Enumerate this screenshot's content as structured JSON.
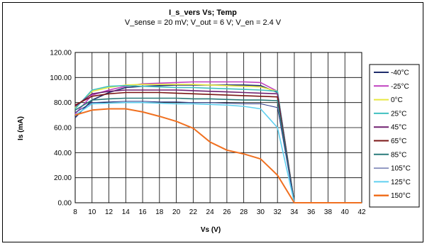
{
  "chart_data": {
    "type": "line",
    "title": "I_s_vers Vs; Temp",
    "subtitle": "V_sense = 20 mV; V_out = 6 V; V_en = 2.4 V",
    "xlabel": "Vs (V)",
    "ylabel": "Is (mA)",
    "xlim": [
      8,
      42
    ],
    "ylim": [
      0,
      120
    ],
    "xticks": [
      "8",
      "10",
      "12",
      "14",
      "16",
      "18",
      "20",
      "22",
      "24",
      "26",
      "28",
      "30",
      "32",
      "34",
      "36",
      "38",
      "40",
      "42"
    ],
    "yticks": [
      "0.00",
      "20.00",
      "40.00",
      "60.00",
      "80.00",
      "100.00",
      "120.00"
    ],
    "grid": true,
    "legend_position": "right",
    "x": [
      8,
      10,
      12,
      14,
      16,
      18,
      20,
      22,
      24,
      26,
      28,
      30,
      32,
      34,
      36,
      38,
      40,
      42
    ],
    "series": [
      {
        "name": "-40°C",
        "color": "#1f2d6b",
        "values": [
          68,
          82,
          88,
          92,
          93,
          93.5,
          94,
          94,
          94,
          94,
          94,
          93.5,
          88,
          0,
          0,
          0,
          0,
          0
        ]
      },
      {
        "name": "-25°C",
        "color": "#c040c0",
        "values": [
          71,
          86,
          90,
          93,
          95,
          95.5,
          96,
          96.5,
          96.5,
          96.5,
          96.5,
          96,
          89,
          0,
          0,
          0,
          0,
          0
        ]
      },
      {
        "name": "0°C",
        "color": "#e8e840",
        "values": [
          76,
          89,
          92,
          94,
          94.5,
          94.5,
          94.5,
          94.5,
          94,
          93.5,
          93,
          92.5,
          89,
          0,
          0,
          0,
          0,
          0
        ]
      },
      {
        "name": "25°C",
        "color": "#40c0c0",
        "values": [
          75,
          90,
          93,
          93.5,
          93,
          92.5,
          92,
          92,
          91.5,
          91,
          90.5,
          90,
          89,
          0,
          0,
          0,
          0,
          0
        ]
      },
      {
        "name": "45°C",
        "color": "#702070",
        "values": [
          77,
          87,
          89,
          90,
          90,
          90,
          90,
          89.5,
          89,
          88.5,
          88,
          87.5,
          87,
          0,
          0,
          0,
          0,
          0
        ]
      },
      {
        "name": "65°C",
        "color": "#7a1515",
        "values": [
          78,
          85,
          87,
          88,
          88,
          88,
          87.5,
          87,
          86.5,
          86,
          85.5,
          85,
          84.5,
          0,
          0,
          0,
          0,
          0
        ]
      },
      {
        "name": "85°C",
        "color": "#2a7a7a",
        "values": [
          74,
          82,
          83,
          83.5,
          83.5,
          83.5,
          83.5,
          83,
          83,
          82.5,
          82,
          82,
          81.5,
          0,
          0,
          0,
          0,
          0
        ]
      },
      {
        "name": "105°C",
        "color": "#2a3a8a",
        "values": [
          72,
          80,
          80.5,
          81,
          81,
          80.5,
          80.5,
          80,
          80,
          79.5,
          79,
          79,
          76,
          0,
          0,
          0,
          0,
          0
        ]
      },
      {
        "name": "125°C",
        "color": "#60d0f0",
        "values": [
          70,
          79,
          79.5,
          80,
          80,
          79.5,
          79,
          79,
          78.5,
          78,
          77,
          75,
          60,
          0,
          0,
          0,
          0,
          0
        ]
      },
      {
        "name": "150°C",
        "color": "#f07020",
        "values": [
          70,
          74,
          75,
          75,
          72.5,
          69,
          65,
          59.5,
          48.5,
          42,
          39,
          35,
          22,
          0,
          0,
          0,
          0,
          0
        ]
      }
    ]
  }
}
